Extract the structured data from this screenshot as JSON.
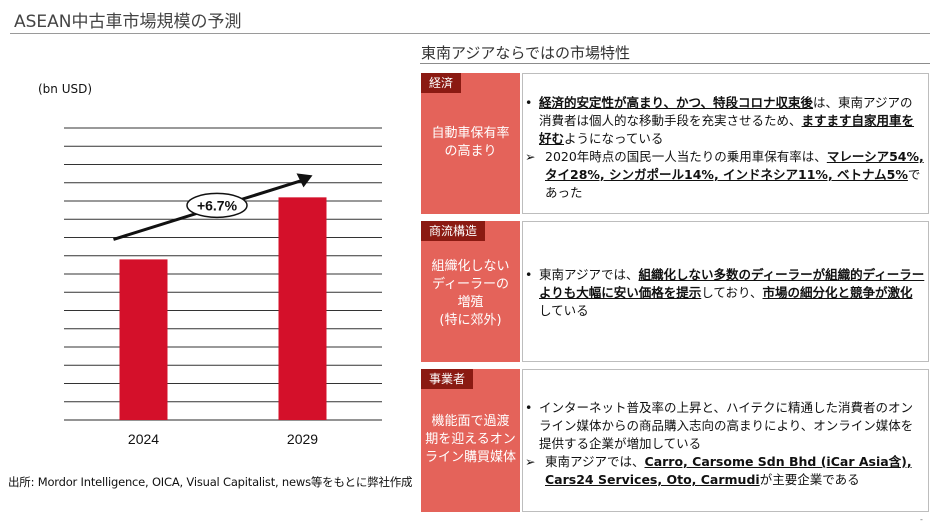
{
  "page": {
    "title": "ASEAN中古車市場規模の予測",
    "source": "出所: Mordor Intelligence, OICA, Visual Capitalist, news等をもとに弊社作成",
    "page_mark": "-"
  },
  "chart_data": {
    "type": "bar",
    "unit_label": "(bn USD)",
    "categories": [
      "2024",
      "2029"
    ],
    "values": [
      4.4,
      6.1
    ],
    "ylim": [
      0,
      8
    ],
    "grid_lines": 17,
    "bar_color": "#d4102a",
    "annotation": "+6.7%",
    "grid": true
  },
  "right": {
    "heading": "東南アジアならではの市場特性",
    "rows": [
      {
        "tag": "経済",
        "label_lines": [
          "自動車保有率",
          "の高まり"
        ],
        "bullet": {
          "u1": "経済的安定性が高まり、かつ、特段コロナ収束後",
          "t1": "は、東南アジアの消費者は個人的な移動手段を充実させるため、",
          "u2": "ますます自家用車を好む",
          "t2": "ようになっている"
        },
        "sub": {
          "mark": "➢",
          "t1": "2020年時点の国民一人当たりの乗用車保有率は、",
          "u1": "マレーシア54%, タイ28%, シンガポール14%, インドネシア11%, ベトナム5%",
          "t2": "であった"
        }
      },
      {
        "tag": "商流構造",
        "label_lines": [
          "組織化しない",
          "ディーラーの",
          "増殖",
          "(特に郊外)"
        ],
        "bullet": {
          "t1": "東南アジアでは、",
          "u1": "組織化しない多数のディーラーが組織的ディーラーよりも大幅に安い価格を提示",
          "t2": "しており、",
          "u2": "市場の細分化と競争が激化",
          "t3": "している"
        }
      },
      {
        "tag": "事業者",
        "label_lines": [
          "機能面で過渡",
          "期を迎えるオン",
          "ライン購買媒体"
        ],
        "bullet": {
          "t1": "インターネット普及率の上昇と、ハイテクに精通した消費者のオンライン媒体からの商品購入志向の高まりにより、オンライン媒体を提供する企業が増加している"
        },
        "sub": {
          "mark": "➢",
          "t1": "東南アジアでは、",
          "u1": "Carro, Carsome Sdn Bhd (iCar Asia含), Cars24 Services, Oto, Carmudi",
          "t2": "が主要企業である"
        }
      }
    ]
  }
}
